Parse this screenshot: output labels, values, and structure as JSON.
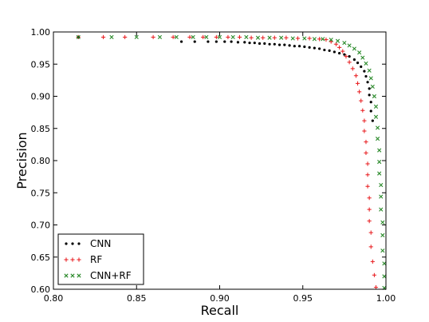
{
  "chart_data": {
    "type": "scatter",
    "xlabel": "Recall",
    "ylabel": "Precision",
    "xlim": [
      0.8,
      1.0
    ],
    "ylim": [
      0.6,
      1.0
    ],
    "xticks": [
      "0.80",
      "0.85",
      "0.90",
      "0.95",
      "1.00"
    ],
    "yticks": [
      "0.60",
      "0.65",
      "0.70",
      "0.75",
      "0.80",
      "0.85",
      "0.90",
      "0.95",
      "1.00"
    ],
    "grid": false,
    "legend_position": "lower-left",
    "series": [
      {
        "name": "CNN",
        "marker": "dot",
        "color": "#000000",
        "points": [
          [
            0.815,
            0.992
          ],
          [
            0.877,
            0.985
          ],
          [
            0.885,
            0.985
          ],
          [
            0.893,
            0.985
          ],
          [
            0.898,
            0.985
          ],
          [
            0.903,
            0.985
          ],
          [
            0.907,
            0.985
          ],
          [
            0.911,
            0.984
          ],
          [
            0.915,
            0.984
          ],
          [
            0.918,
            0.983
          ],
          [
            0.921,
            0.983
          ],
          [
            0.924,
            0.982
          ],
          [
            0.927,
            0.982
          ],
          [
            0.93,
            0.981
          ],
          [
            0.933,
            0.981
          ],
          [
            0.936,
            0.98
          ],
          [
            0.939,
            0.98
          ],
          [
            0.942,
            0.979
          ],
          [
            0.945,
            0.978
          ],
          [
            0.948,
            0.978
          ],
          [
            0.951,
            0.977
          ],
          [
            0.954,
            0.976
          ],
          [
            0.957,
            0.975
          ],
          [
            0.96,
            0.974
          ],
          [
            0.963,
            0.972
          ],
          [
            0.966,
            0.971
          ],
          [
            0.969,
            0.969
          ],
          [
            0.972,
            0.967
          ],
          [
            0.975,
            0.965
          ],
          [
            0.978,
            0.962
          ],
          [
            0.981,
            0.957
          ],
          [
            0.983,
            0.952
          ],
          [
            0.985,
            0.946
          ],
          [
            0.987,
            0.939
          ],
          [
            0.988,
            0.931
          ],
          [
            0.989,
            0.922
          ],
          [
            0.99,
            0.912
          ],
          [
            0.99,
            0.902
          ],
          [
            0.991,
            0.891
          ],
          [
            0.991,
            0.877
          ],
          [
            0.992,
            0.862
          ]
        ]
      },
      {
        "name": "RF",
        "marker": "plus",
        "color": "#e8191c",
        "points": [
          [
            0.815,
            0.992
          ],
          [
            0.83,
            0.992
          ],
          [
            0.843,
            0.992
          ],
          [
            0.86,
            0.992
          ],
          [
            0.872,
            0.992
          ],
          [
            0.882,
            0.992
          ],
          [
            0.89,
            0.992
          ],
          [
            0.898,
            0.992
          ],
          [
            0.905,
            0.992
          ],
          [
            0.912,
            0.992
          ],
          [
            0.919,
            0.991
          ],
          [
            0.926,
            0.991
          ],
          [
            0.933,
            0.991
          ],
          [
            0.94,
            0.991
          ],
          [
            0.947,
            0.99
          ],
          [
            0.954,
            0.99
          ],
          [
            0.96,
            0.989
          ],
          [
            0.964,
            0.988
          ],
          [
            0.967,
            0.985
          ],
          [
            0.97,
            0.981
          ],
          [
            0.972,
            0.976
          ],
          [
            0.974,
            0.97
          ],
          [
            0.976,
            0.962
          ],
          [
            0.978,
            0.953
          ],
          [
            0.98,
            0.943
          ],
          [
            0.982,
            0.932
          ],
          [
            0.983,
            0.92
          ],
          [
            0.984,
            0.907
          ],
          [
            0.985,
            0.893
          ],
          [
            0.986,
            0.878
          ],
          [
            0.987,
            0.862
          ],
          [
            0.987,
            0.846
          ],
          [
            0.988,
            0.829
          ],
          [
            0.988,
            0.812
          ],
          [
            0.989,
            0.795
          ],
          [
            0.989,
            0.778
          ],
          [
            0.989,
            0.76
          ],
          [
            0.99,
            0.742
          ],
          [
            0.99,
            0.724
          ],
          [
            0.99,
            0.706
          ],
          [
            0.991,
            0.688
          ],
          [
            0.991,
            0.666
          ],
          [
            0.992,
            0.643
          ],
          [
            0.993,
            0.622
          ],
          [
            0.994,
            0.603
          ]
        ]
      },
      {
        "name": "CNN+RF",
        "marker": "x",
        "color": "#2a8a2a",
        "points": [
          [
            0.815,
            0.992
          ],
          [
            0.835,
            0.992
          ],
          [
            0.85,
            0.992
          ],
          [
            0.864,
            0.992
          ],
          [
            0.874,
            0.992
          ],
          [
            0.884,
            0.992
          ],
          [
            0.892,
            0.992
          ],
          [
            0.9,
            0.992
          ],
          [
            0.908,
            0.992
          ],
          [
            0.916,
            0.992
          ],
          [
            0.923,
            0.991
          ],
          [
            0.93,
            0.991
          ],
          [
            0.937,
            0.991
          ],
          [
            0.944,
            0.99
          ],
          [
            0.951,
            0.99
          ],
          [
            0.957,
            0.989
          ],
          [
            0.962,
            0.989
          ],
          [
            0.967,
            0.988
          ],
          [
            0.971,
            0.986
          ],
          [
            0.975,
            0.983
          ],
          [
            0.978,
            0.979
          ],
          [
            0.981,
            0.974
          ],
          [
            0.984,
            0.968
          ],
          [
            0.986,
            0.96
          ],
          [
            0.988,
            0.951
          ],
          [
            0.99,
            0.94
          ],
          [
            0.991,
            0.928
          ],
          [
            0.992,
            0.915
          ],
          [
            0.993,
            0.9
          ],
          [
            0.994,
            0.884
          ],
          [
            0.994,
            0.868
          ],
          [
            0.995,
            0.851
          ],
          [
            0.995,
            0.834
          ],
          [
            0.996,
            0.816
          ],
          [
            0.996,
            0.798
          ],
          [
            0.996,
            0.78
          ],
          [
            0.997,
            0.762
          ],
          [
            0.997,
            0.744
          ],
          [
            0.997,
            0.724
          ],
          [
            0.998,
            0.704
          ],
          [
            0.998,
            0.684
          ],
          [
            0.998,
            0.66
          ],
          [
            0.999,
            0.64
          ],
          [
            0.999,
            0.62
          ],
          [
            0.999,
            0.602
          ]
        ]
      }
    ]
  }
}
